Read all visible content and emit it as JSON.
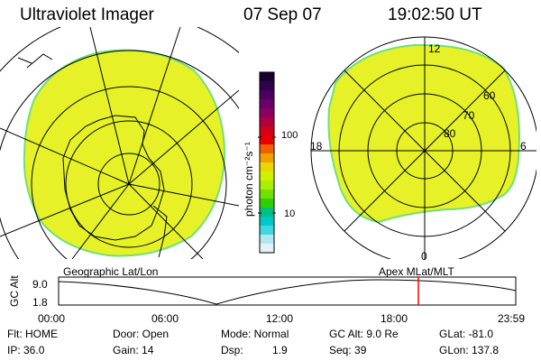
{
  "header": {
    "instrument": "Ultraviolet Imager",
    "date": "07 Sep 07",
    "time": "19:02:50 UT"
  },
  "colorbar": {
    "unit_label": "photon cm⁻²s⁻¹",
    "tick_labels": [
      "100",
      "10"
    ],
    "colors": [
      "#1a0030",
      "#30004a",
      "#4c005e",
      "#6a0068",
      "#8c0060",
      "#b00040",
      "#d00018",
      "#e80000",
      "#f06000",
      "#f0a000",
      "#e8d800",
      "#d0f000",
      "#a8f000",
      "#70e000",
      "#30d000",
      "#00c080",
      "#00c8c8",
      "#40d8e0",
      "#b0e8f0",
      "#e8f0f8"
    ],
    "fill_color": "#e6f227"
  },
  "left_panel": {
    "label": "Geographic Lat/Lon"
  },
  "right_panel": {
    "label": "Apex  MLat/MLT",
    "hour_labels": [
      "12",
      "18",
      "6",
      "0"
    ],
    "lat_labels": [
      "60",
      "70",
      "80"
    ]
  },
  "altitude_strip": {
    "axis_title": "GC Alt",
    "y_ticks": [
      "9.0",
      "1.8"
    ],
    "x_ticks": [
      "00:00",
      "06:00",
      "12:00",
      "18:00",
      "23:59"
    ],
    "marker_color": "#ff0000"
  },
  "info": {
    "flt": "Flt: HOME",
    "ip": "IP: 36.0",
    "door": "Door: Open",
    "gain": "Gain: 14",
    "mode": "Mode: Normal",
    "dsp_label": "Dsp:",
    "dsp_value": "1.9",
    "gc_alt": "GC Alt: 9.0 Re",
    "seq": "Seq: 39",
    "glat": "GLat: -81.0",
    "glon": "GLon: 137.8"
  }
}
